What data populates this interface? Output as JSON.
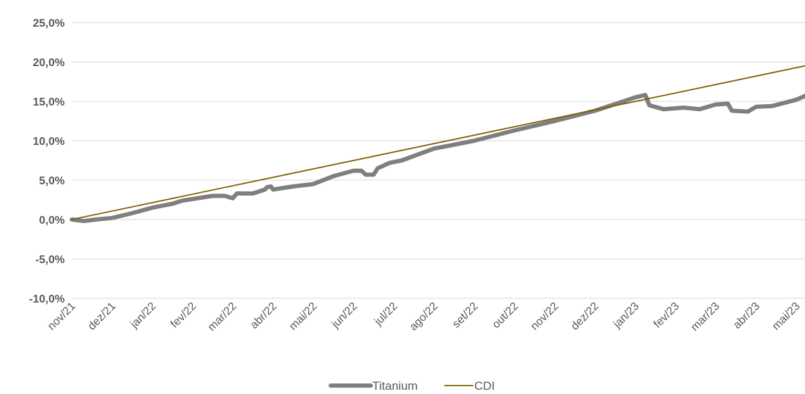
{
  "chart_data": {
    "type": "line",
    "title": "",
    "xlabel": "",
    "ylabel": "",
    "ylim": [
      -10,
      25
    ],
    "yticks": [
      25,
      20,
      15,
      10,
      5,
      0,
      -5,
      -10
    ],
    "ytick_labels": [
      "25,0%",
      "20,0%",
      "15,0%",
      "10,0%",
      "5,0%",
      "0,0%",
      "-5,0%",
      "-10,0%"
    ],
    "categories": [
      "nov/21",
      "dez/21",
      "jan/22",
      "fev/22",
      "mar/22",
      "abr/22",
      "mai/22",
      "jun/22",
      "jul/22",
      "ago/22",
      "set/22",
      "out/22",
      "nov/22",
      "dez/22",
      "jan/23",
      "fev/23",
      "mar/23",
      "abr/23",
      "mai/23"
    ],
    "grid": true,
    "legend_position": "bottom",
    "series": [
      {
        "name": "Titanium",
        "color": "#7f7f7f",
        "x": [
          0,
          0.3,
          0.6,
          1.0,
          1.5,
          2.0,
          2.5,
          2.75,
          3.0,
          3.5,
          3.8,
          4.0,
          4.1,
          4.5,
          4.8,
          4.85,
          4.95,
          5.0,
          5.5,
          6.0,
          6.5,
          7.0,
          7.2,
          7.3,
          7.5,
          7.6,
          7.9,
          8.2,
          9.0,
          10.0,
          11.0,
          12.0,
          13.0,
          14.0,
          14.25,
          14.35,
          14.7,
          15.2,
          15.6,
          16.0,
          16.3,
          16.4,
          16.8,
          17.0,
          17.4,
          18.0,
          18.4
        ],
        "values": [
          0,
          -0.2,
          0,
          0.2,
          0.8,
          1.5,
          2.0,
          2.4,
          2.6,
          3.0,
          3.0,
          2.7,
          3.3,
          3.3,
          3.8,
          4.1,
          4.2,
          3.8,
          4.2,
          4.5,
          5.5,
          6.2,
          6.2,
          5.7,
          5.7,
          6.5,
          7.2,
          7.5,
          9.0,
          10.0,
          11.3,
          12.5,
          13.8,
          15.5,
          15.8,
          14.5,
          14.0,
          14.2,
          14.0,
          14.6,
          14.7,
          13.8,
          13.7,
          14.3,
          14.4,
          15.2,
          16.1
        ]
      },
      {
        "name": "CDI",
        "color": "#7f6000",
        "x": [
          0,
          18.4
        ],
        "values": [
          0,
          19.7
        ]
      }
    ]
  }
}
